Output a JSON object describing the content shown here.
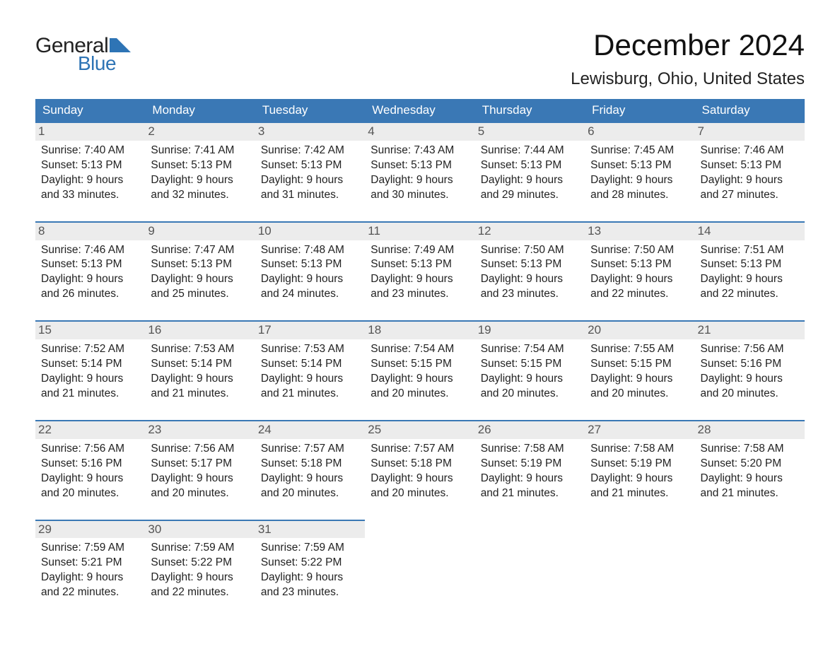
{
  "logo": {
    "word1": "General",
    "word2": "Blue",
    "shape_color": "#2e74b5"
  },
  "title": "December 2024",
  "location": "Lewisburg, Ohio, United States",
  "colors": {
    "header_bg": "#3a78b5",
    "header_text": "#ffffff",
    "row_border": "#3a78b5",
    "daynum_bg": "#ececec",
    "text": "#222222"
  },
  "weekdays": [
    "Sunday",
    "Monday",
    "Tuesday",
    "Wednesday",
    "Thursday",
    "Friday",
    "Saturday"
  ],
  "weeks": [
    [
      {
        "day": "1",
        "sunrise": "Sunrise: 7:40 AM",
        "sunset": "Sunset: 5:13 PM",
        "d1": "Daylight: 9 hours",
        "d2": "and 33 minutes."
      },
      {
        "day": "2",
        "sunrise": "Sunrise: 7:41 AM",
        "sunset": "Sunset: 5:13 PM",
        "d1": "Daylight: 9 hours",
        "d2": "and 32 minutes."
      },
      {
        "day": "3",
        "sunrise": "Sunrise: 7:42 AM",
        "sunset": "Sunset: 5:13 PM",
        "d1": "Daylight: 9 hours",
        "d2": "and 31 minutes."
      },
      {
        "day": "4",
        "sunrise": "Sunrise: 7:43 AM",
        "sunset": "Sunset: 5:13 PM",
        "d1": "Daylight: 9 hours",
        "d2": "and 30 minutes."
      },
      {
        "day": "5",
        "sunrise": "Sunrise: 7:44 AM",
        "sunset": "Sunset: 5:13 PM",
        "d1": "Daylight: 9 hours",
        "d2": "and 29 minutes."
      },
      {
        "day": "6",
        "sunrise": "Sunrise: 7:45 AM",
        "sunset": "Sunset: 5:13 PM",
        "d1": "Daylight: 9 hours",
        "d2": "and 28 minutes."
      },
      {
        "day": "7",
        "sunrise": "Sunrise: 7:46 AM",
        "sunset": "Sunset: 5:13 PM",
        "d1": "Daylight: 9 hours",
        "d2": "and 27 minutes."
      }
    ],
    [
      {
        "day": "8",
        "sunrise": "Sunrise: 7:46 AM",
        "sunset": "Sunset: 5:13 PM",
        "d1": "Daylight: 9 hours",
        "d2": "and 26 minutes."
      },
      {
        "day": "9",
        "sunrise": "Sunrise: 7:47 AM",
        "sunset": "Sunset: 5:13 PM",
        "d1": "Daylight: 9 hours",
        "d2": "and 25 minutes."
      },
      {
        "day": "10",
        "sunrise": "Sunrise: 7:48 AM",
        "sunset": "Sunset: 5:13 PM",
        "d1": "Daylight: 9 hours",
        "d2": "and 24 minutes."
      },
      {
        "day": "11",
        "sunrise": "Sunrise: 7:49 AM",
        "sunset": "Sunset: 5:13 PM",
        "d1": "Daylight: 9 hours",
        "d2": "and 23 minutes."
      },
      {
        "day": "12",
        "sunrise": "Sunrise: 7:50 AM",
        "sunset": "Sunset: 5:13 PM",
        "d1": "Daylight: 9 hours",
        "d2": "and 23 minutes."
      },
      {
        "day": "13",
        "sunrise": "Sunrise: 7:50 AM",
        "sunset": "Sunset: 5:13 PM",
        "d1": "Daylight: 9 hours",
        "d2": "and 22 minutes."
      },
      {
        "day": "14",
        "sunrise": "Sunrise: 7:51 AM",
        "sunset": "Sunset: 5:13 PM",
        "d1": "Daylight: 9 hours",
        "d2": "and 22 minutes."
      }
    ],
    [
      {
        "day": "15",
        "sunrise": "Sunrise: 7:52 AM",
        "sunset": "Sunset: 5:14 PM",
        "d1": "Daylight: 9 hours",
        "d2": "and 21 minutes."
      },
      {
        "day": "16",
        "sunrise": "Sunrise: 7:53 AM",
        "sunset": "Sunset: 5:14 PM",
        "d1": "Daylight: 9 hours",
        "d2": "and 21 minutes."
      },
      {
        "day": "17",
        "sunrise": "Sunrise: 7:53 AM",
        "sunset": "Sunset: 5:14 PM",
        "d1": "Daylight: 9 hours",
        "d2": "and 21 minutes."
      },
      {
        "day": "18",
        "sunrise": "Sunrise: 7:54 AM",
        "sunset": "Sunset: 5:15 PM",
        "d1": "Daylight: 9 hours",
        "d2": "and 20 minutes."
      },
      {
        "day": "19",
        "sunrise": "Sunrise: 7:54 AM",
        "sunset": "Sunset: 5:15 PM",
        "d1": "Daylight: 9 hours",
        "d2": "and 20 minutes."
      },
      {
        "day": "20",
        "sunrise": "Sunrise: 7:55 AM",
        "sunset": "Sunset: 5:15 PM",
        "d1": "Daylight: 9 hours",
        "d2": "and 20 minutes."
      },
      {
        "day": "21",
        "sunrise": "Sunrise: 7:56 AM",
        "sunset": "Sunset: 5:16 PM",
        "d1": "Daylight: 9 hours",
        "d2": "and 20 minutes."
      }
    ],
    [
      {
        "day": "22",
        "sunrise": "Sunrise: 7:56 AM",
        "sunset": "Sunset: 5:16 PM",
        "d1": "Daylight: 9 hours",
        "d2": "and 20 minutes."
      },
      {
        "day": "23",
        "sunrise": "Sunrise: 7:56 AM",
        "sunset": "Sunset: 5:17 PM",
        "d1": "Daylight: 9 hours",
        "d2": "and 20 minutes."
      },
      {
        "day": "24",
        "sunrise": "Sunrise: 7:57 AM",
        "sunset": "Sunset: 5:18 PM",
        "d1": "Daylight: 9 hours",
        "d2": "and 20 minutes."
      },
      {
        "day": "25",
        "sunrise": "Sunrise: 7:57 AM",
        "sunset": "Sunset: 5:18 PM",
        "d1": "Daylight: 9 hours",
        "d2": "and 20 minutes."
      },
      {
        "day": "26",
        "sunrise": "Sunrise: 7:58 AM",
        "sunset": "Sunset: 5:19 PM",
        "d1": "Daylight: 9 hours",
        "d2": "and 21 minutes."
      },
      {
        "day": "27",
        "sunrise": "Sunrise: 7:58 AM",
        "sunset": "Sunset: 5:19 PM",
        "d1": "Daylight: 9 hours",
        "d2": "and 21 minutes."
      },
      {
        "day": "28",
        "sunrise": "Sunrise: 7:58 AM",
        "sunset": "Sunset: 5:20 PM",
        "d1": "Daylight: 9 hours",
        "d2": "and 21 minutes."
      }
    ],
    [
      {
        "day": "29",
        "sunrise": "Sunrise: 7:59 AM",
        "sunset": "Sunset: 5:21 PM",
        "d1": "Daylight: 9 hours",
        "d2": "and 22 minutes."
      },
      {
        "day": "30",
        "sunrise": "Sunrise: 7:59 AM",
        "sunset": "Sunset: 5:22 PM",
        "d1": "Daylight: 9 hours",
        "d2": "and 22 minutes."
      },
      {
        "day": "31",
        "sunrise": "Sunrise: 7:59 AM",
        "sunset": "Sunset: 5:22 PM",
        "d1": "Daylight: 9 hours",
        "d2": "and 23 minutes."
      },
      null,
      null,
      null,
      null
    ]
  ]
}
